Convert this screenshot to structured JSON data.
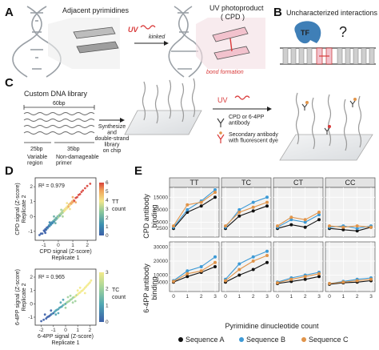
{
  "panels": {
    "a": {
      "label": "A",
      "adjacent": "Adjacent pyrimidines",
      "uv": "UV",
      "kinked": "kinked",
      "photoproduct": "UV photoproduct",
      "cpd": "( CPD )",
      "bond": "bond formation"
    },
    "b": {
      "label": "B",
      "title": "Uncharacterized interactions",
      "tf": "TF",
      "question": "?"
    },
    "c": {
      "label": "C",
      "library": "Custom DNA library",
      "bp60": "60bp",
      "bp25": "25bp",
      "bp35": "35bp",
      "variable": "Variable\nregion",
      "nondamage": "Non-damageable\nprimer",
      "synth": "Synthesize\nand\ndouble-strand\nlibrary\non chip",
      "uv": "UV",
      "antibody": "CPD or 6-4PP\nantibody",
      "secondary": "Secondary antibody\nwith fluorescent dye"
    },
    "d": {
      "label": "D",
      "scatter1": {
        "r2": "R² = 0.979",
        "xlabel1": "CPD signal (Z-score)",
        "xlabel2": "Replicate 1",
        "ylabel1": "CPD signal (Z-score)",
        "ylabel2": "Replicate 2",
        "legend_title1": "TT",
        "legend_title2": "count",
        "xticks": [
          "-1",
          "0",
          "1",
          "2"
        ],
        "yticks": [
          "-1",
          "0",
          "1",
          "2"
        ],
        "cbar_ticks": [
          "0",
          "1",
          "2",
          "3",
          "4",
          "5",
          "6"
        ]
      },
      "scatter2": {
        "r2": "R² = 0.965",
        "xlabel1": "6-4PP signal (Z-score)",
        "xlabel2": "Replicate 1",
        "ylabel1": "6-4PP signal (Z-score)",
        "ylabel2": "Replicate 2",
        "legend_title1": "TC",
        "legend_title2": "count",
        "xticks": [
          "-2",
          "-1",
          "0",
          "1",
          "2"
        ],
        "yticks": [
          "-1",
          "0",
          "1",
          "2"
        ],
        "cbar_ticks": [
          "0",
          "1",
          "2",
          "3"
        ]
      }
    },
    "e": {
      "label": "E",
      "xlabel": "Pyrimidine dinucleotide count",
      "cpd_ylabel1": "CPD antibody",
      "cpd_ylabel2": "binding",
      "pp_ylabel1": "6-4PP antibody",
      "pp_ylabel2": "binding"
    }
  },
  "colors": {
    "sequence_a": "#111111",
    "sequence_b": "#3d9ad6",
    "sequence_c": "#e0944a",
    "uv_red": "#d93a3a",
    "tf_blue": "#3f7fb7"
  },
  "chart_data": [
    {
      "type": "scatter",
      "id": "D-top",
      "xlabel": "CPD signal (Z-score) Replicate 1",
      "ylabel": "CPD signal (Z-score) Replicate 2",
      "xlim": [
        -1.6,
        2.6
      ],
      "ylim": [
        -1.6,
        2.6
      ],
      "annotation": "R² = 0.979",
      "colorbar": {
        "title": "TT count",
        "min": 0,
        "max": 6
      },
      "points": [
        [
          -1.3,
          -1.25,
          0
        ],
        [
          -1.2,
          -1.15,
          0
        ],
        [
          -1.1,
          -1.15,
          0
        ],
        [
          -1.0,
          -0.95,
          0
        ],
        [
          -0.95,
          -1.0,
          0
        ],
        [
          -0.9,
          -0.85,
          0
        ],
        [
          -0.85,
          -0.9,
          0
        ],
        [
          -0.8,
          -0.75,
          0
        ],
        [
          -0.75,
          -0.8,
          1
        ],
        [
          -0.7,
          -0.7,
          0
        ],
        [
          -0.65,
          -0.6,
          1
        ],
        [
          -0.6,
          -0.65,
          1
        ],
        [
          -0.55,
          -0.5,
          1
        ],
        [
          -0.5,
          -0.55,
          1
        ],
        [
          -0.45,
          -0.4,
          1
        ],
        [
          -0.4,
          -0.45,
          1
        ],
        [
          -0.35,
          -0.3,
          2
        ],
        [
          -0.3,
          -0.35,
          1
        ],
        [
          -0.25,
          -0.2,
          2
        ],
        [
          -0.2,
          -0.25,
          2
        ],
        [
          -0.15,
          -0.1,
          2
        ],
        [
          -0.1,
          -0.15,
          2
        ],
        [
          -0.05,
          0.0,
          2
        ],
        [
          0.0,
          -0.05,
          3
        ],
        [
          0.05,
          0.1,
          3
        ],
        [
          0.1,
          0.05,
          2
        ],
        [
          0.15,
          0.2,
          3
        ],
        [
          0.2,
          0.15,
          3
        ],
        [
          0.25,
          0.3,
          3
        ],
        [
          0.3,
          0.25,
          3
        ],
        [
          0.35,
          0.4,
          3
        ],
        [
          0.4,
          0.35,
          4
        ],
        [
          0.45,
          0.5,
          4
        ],
        [
          0.5,
          0.45,
          4
        ],
        [
          0.55,
          0.6,
          4
        ],
        [
          0.6,
          0.55,
          4
        ],
        [
          0.65,
          0.7,
          4
        ],
        [
          0.7,
          0.65,
          5
        ],
        [
          0.75,
          0.8,
          5
        ],
        [
          0.8,
          0.75,
          4
        ],
        [
          0.85,
          0.9,
          5
        ],
        [
          0.9,
          0.85,
          5
        ],
        [
          0.95,
          1.0,
          5
        ],
        [
          1.0,
          0.95,
          5
        ],
        [
          1.05,
          1.1,
          5
        ],
        [
          1.1,
          1.05,
          6
        ],
        [
          1.2,
          1.25,
          6
        ],
        [
          1.3,
          1.3,
          6
        ],
        [
          1.4,
          1.45,
          6
        ],
        [
          1.5,
          1.5,
          6
        ],
        [
          1.6,
          1.65,
          6
        ],
        [
          1.7,
          1.75,
          6
        ],
        [
          1.85,
          1.9,
          6
        ],
        [
          2.0,
          2.05,
          6
        ],
        [
          2.2,
          2.2,
          6
        ],
        [
          -0.6,
          -0.4,
          1
        ],
        [
          -0.3,
          0.0,
          2
        ],
        [
          0.2,
          0.45,
          3
        ],
        [
          0.6,
          0.9,
          4
        ],
        [
          1.0,
          1.3,
          5
        ],
        [
          -0.2,
          -0.45,
          2
        ],
        [
          0.3,
          0.0,
          3
        ],
        [
          0.8,
          0.5,
          4
        ],
        [
          1.2,
          0.95,
          5
        ],
        [
          -0.9,
          -1.1,
          0
        ]
      ]
    },
    {
      "type": "scatter",
      "id": "D-bottom",
      "xlabel": "6-4PP signal (Z-score) Replicate 1",
      "ylabel": "6-4PP signal (Z-score) Replicate 2",
      "xlim": [
        -2.5,
        2.5
      ],
      "ylim": [
        -1.6,
        2.6
      ],
      "annotation": "R² = 0.965",
      "colorbar": {
        "title": "TC count",
        "min": 0,
        "max": 3
      },
      "points": [
        [
          -2.0,
          -1.3,
          0
        ],
        [
          -1.8,
          -1.2,
          0
        ],
        [
          -1.6,
          -1.1,
          0
        ],
        [
          -1.5,
          -1.0,
          0
        ],
        [
          -1.4,
          -0.95,
          0
        ],
        [
          -1.3,
          -0.9,
          0
        ],
        [
          -1.2,
          -0.8,
          0
        ],
        [
          -1.1,
          -0.75,
          1
        ],
        [
          -1.0,
          -0.7,
          0
        ],
        [
          -0.9,
          -0.6,
          1
        ],
        [
          -0.8,
          -0.5,
          1
        ],
        [
          -0.7,
          -0.45,
          1
        ],
        [
          -0.6,
          -0.4,
          1
        ],
        [
          -0.5,
          -0.3,
          1
        ],
        [
          -0.4,
          -0.25,
          1
        ],
        [
          -0.3,
          -0.2,
          1
        ],
        [
          -0.2,
          -0.1,
          1
        ],
        [
          -0.1,
          -0.05,
          2
        ],
        [
          0.0,
          0.0,
          1
        ],
        [
          0.1,
          0.1,
          2
        ],
        [
          0.2,
          0.15,
          2
        ],
        [
          0.3,
          0.2,
          2
        ],
        [
          0.4,
          0.3,
          2
        ],
        [
          0.5,
          0.35,
          2
        ],
        [
          0.6,
          0.45,
          2
        ],
        [
          0.7,
          0.5,
          2
        ],
        [
          0.8,
          0.55,
          3
        ],
        [
          0.9,
          0.65,
          2
        ],
        [
          1.0,
          0.7,
          3
        ],
        [
          1.1,
          0.8,
          3
        ],
        [
          1.2,
          0.85,
          3
        ],
        [
          1.3,
          0.95,
          3
        ],
        [
          1.4,
          1.0,
          3
        ],
        [
          1.5,
          1.1,
          3
        ],
        [
          1.6,
          1.2,
          3
        ],
        [
          1.7,
          1.3,
          3
        ],
        [
          1.8,
          1.4,
          3
        ],
        [
          1.9,
          1.5,
          3
        ],
        [
          2.0,
          1.6,
          3
        ],
        [
          2.1,
          1.75,
          3
        ],
        [
          -1.2,
          -0.5,
          0
        ],
        [
          -0.8,
          -0.8,
          1
        ],
        [
          -0.4,
          0.1,
          1
        ],
        [
          0.0,
          -0.3,
          2
        ],
        [
          0.4,
          0.6,
          2
        ],
        [
          0.8,
          0.2,
          2
        ],
        [
          1.2,
          1.2,
          3
        ],
        [
          1.6,
          0.8,
          3
        ],
        [
          -1.7,
          -0.8,
          0
        ],
        [
          -0.2,
          0.3,
          1
        ],
        [
          0.6,
          0.1,
          2
        ],
        [
          1.0,
          1.0,
          3
        ],
        [
          -0.6,
          -0.7,
          1
        ],
        [
          0.2,
          0.5,
          2
        ]
      ]
    },
    {
      "type": "line",
      "id": "E",
      "x": [
        0,
        1,
        2,
        3
      ],
      "xlabel": "Pyrimidine dinucleotide count",
      "facets": [
        "TT",
        "TC",
        "CT",
        "CC"
      ],
      "series_names": [
        "Sequence A",
        "Sequence B",
        "Sequence C"
      ],
      "rows": [
        {
          "ylabel": "CPD antibody binding",
          "ylim": [
            0,
            18000
          ],
          "yticks": [
            2500,
            5000,
            10000,
            15000
          ],
          "data": {
            "TT": [
              [
                2500,
                9000,
                11500,
                15000
              ],
              [
                3000,
                10000,
                13500,
                18000
              ],
              [
                3500,
                12000,
                13000,
                17000
              ]
            ],
            "TC": [
              [
                2500,
                7500,
                9500,
                11500
              ],
              [
                3000,
                10000,
                13000,
                15000
              ],
              [
                3500,
                9000,
                11000,
                13000
              ]
            ],
            "CT": [
              [
                2500,
                4000,
                3000,
                6000
              ],
              [
                3000,
                6000,
                5000,
                8000
              ],
              [
                3500,
                7000,
                6000,
                9000
              ]
            ],
            "CC": [
              [
                2500,
                2000,
                1500,
                3000
              ],
              [
                3000,
                3500,
                2500,
                3500
              ],
              [
                3500,
                3000,
                3500,
                3000
              ]
            ]
          }
        },
        {
          "ylabel": "6-4PP antibody binding",
          "ylim": [
            0,
            32000
          ],
          "yticks": [
            5000,
            10000,
            20000,
            30000
          ],
          "data": {
            "TT": [
              [
                5000,
                9000,
                12000,
                16000
              ],
              [
                6000,
                13000,
                16000,
                23000
              ],
              [
                5500,
                11000,
                13000,
                19000
              ]
            ],
            "TC": [
              [
                5000,
                10000,
                14000,
                19000
              ],
              [
                7000,
                18000,
                23000,
                27000
              ],
              [
                6000,
                14000,
                20000,
                24000
              ]
            ],
            "CT": [
              [
                4000,
                5500,
                7000,
                9000
              ],
              [
                5000,
                8000,
                10000,
                12000
              ],
              [
                4500,
                7000,
                9000,
                11000
              ]
            ],
            "CC": [
              [
                3500,
                4500,
                5000,
                6000
              ],
              [
                4000,
                5500,
                7000,
                8000
              ],
              [
                4000,
                5000,
                6000,
                7000
              ]
            ]
          }
        }
      ],
      "legend": [
        "Sequence A",
        "Sequence B",
        "Sequence C"
      ]
    }
  ]
}
